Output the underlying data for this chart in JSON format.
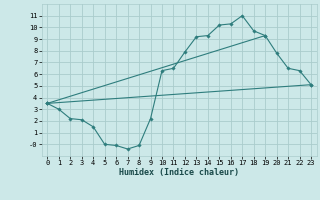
{
  "background_color": "#cce8e8",
  "grid_color": "#aacccc",
  "line_color": "#2e7d7d",
  "xlabel": "Humidex (Indice chaleur)",
  "ylim": [
    -1.0,
    12.0
  ],
  "xlim": [
    -0.5,
    23.5
  ],
  "yticks": [
    0,
    1,
    2,
    3,
    4,
    5,
    6,
    7,
    8,
    9,
    10,
    11
  ],
  "ytick_labels": [
    "-0",
    "1",
    "2",
    "3",
    "4",
    "5",
    "6",
    "7",
    "8",
    "9",
    "10",
    "11"
  ],
  "xticks": [
    0,
    1,
    2,
    3,
    4,
    5,
    6,
    7,
    8,
    9,
    10,
    11,
    12,
    13,
    14,
    15,
    16,
    17,
    18,
    19,
    20,
    21,
    22,
    23
  ],
  "line1_x": [
    0,
    1,
    2,
    3,
    4,
    5,
    6,
    7,
    8,
    9,
    10,
    11,
    12,
    13,
    14,
    15,
    16,
    17,
    18,
    19,
    20,
    21,
    22,
    23
  ],
  "line1_y": [
    3.5,
    3.0,
    2.2,
    2.1,
    1.5,
    0.0,
    -0.1,
    -0.4,
    -0.1,
    2.2,
    6.3,
    6.5,
    7.9,
    9.2,
    9.3,
    10.2,
    10.3,
    11.0,
    9.7,
    9.3,
    7.8,
    6.5,
    6.3,
    5.1
  ],
  "line2_x": [
    0,
    23
  ],
  "line2_y": [
    3.5,
    5.1
  ],
  "line3_x": [
    0,
    19
  ],
  "line3_y": [
    3.5,
    9.3
  ],
  "title_fontsize": 6,
  "tick_fontsize": 5,
  "xlabel_fontsize": 6
}
